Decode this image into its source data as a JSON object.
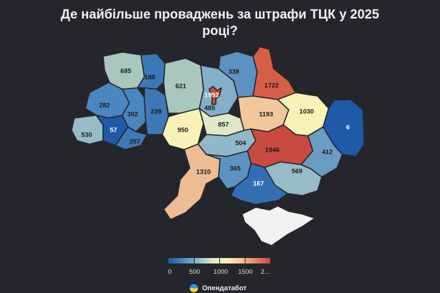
{
  "title": "Де найбільше проваджень за штрафи ТЦК у 2025 році?",
  "colors": {
    "background": "#25262b",
    "scale": [
      "#1f5aa6",
      "#4a86bf",
      "#8fb9c9",
      "#dfe9c9",
      "#f7f2b6",
      "#f2c89a",
      "#e5875a",
      "#c94a3f"
    ],
    "crimea": "#f2f2f2"
  },
  "legend": {
    "ticks": [
      "0",
      "500",
      "1000",
      "1500",
      "2..."
    ]
  },
  "regions": [
    {
      "name": "volyn",
      "value": "685",
      "color": "#a9c8bd"
    },
    {
      "name": "rivne",
      "value": "188",
      "color": "#3c78b6"
    },
    {
      "name": "zhytomyr",
      "value": "621",
      "color": "#a9c8bd"
    },
    {
      "name": "kyiv-oblast",
      "value": "485",
      "color": "#84afc8"
    },
    {
      "name": "kyiv-city",
      "value": "1992",
      "color": "#c94a3f"
    },
    {
      "name": "chernihiv",
      "value": "338",
      "color": "#5d92c2"
    },
    {
      "name": "sumy",
      "value": "1722",
      "color": "#d65e47"
    },
    {
      "name": "lviv",
      "value": "282",
      "color": "#4a86bf"
    },
    {
      "name": "ternopil",
      "value": "302",
      "color": "#4a86bf"
    },
    {
      "name": "khmelnytskyi",
      "value": "239",
      "color": "#3e79b7"
    },
    {
      "name": "zakarpattia",
      "value": "530",
      "color": "#96bcc8"
    },
    {
      "name": "ivano-frankivsk",
      "value": "57",
      "color": "#1f5aa6"
    },
    {
      "name": "chernivtsi",
      "value": "257",
      "color": "#3f7ab7"
    },
    {
      "name": "vinnytsia",
      "value": "950",
      "color": "#f7f2b6"
    },
    {
      "name": "cherkasy",
      "value": "857",
      "color": "#dfe9c9"
    },
    {
      "name": "poltava",
      "value": "1193",
      "color": "#f2c89a"
    },
    {
      "name": "kharkiv",
      "value": "1030",
      "color": "#f7f2b6"
    },
    {
      "name": "luhansk",
      "value": "6",
      "color": "#1f5aa6"
    },
    {
      "name": "kirovohrad",
      "value": "504",
      "color": "#90b8c9"
    },
    {
      "name": "dnipropetrovsk",
      "value": "1946",
      "color": "#c94a3f"
    },
    {
      "name": "donetsk",
      "value": "412",
      "color": "#6b9cc4"
    },
    {
      "name": "odesa",
      "value": "1310",
      "color": "#eebc94"
    },
    {
      "name": "mykolaiv",
      "value": "365",
      "color": "#5d92c2"
    },
    {
      "name": "zaporizhzhia",
      "value": "569",
      "color": "#96bcc8"
    },
    {
      "name": "kherson",
      "value": "167",
      "color": "#326fb2"
    }
  ],
  "brand": {
    "name": "Опендатабот"
  }
}
